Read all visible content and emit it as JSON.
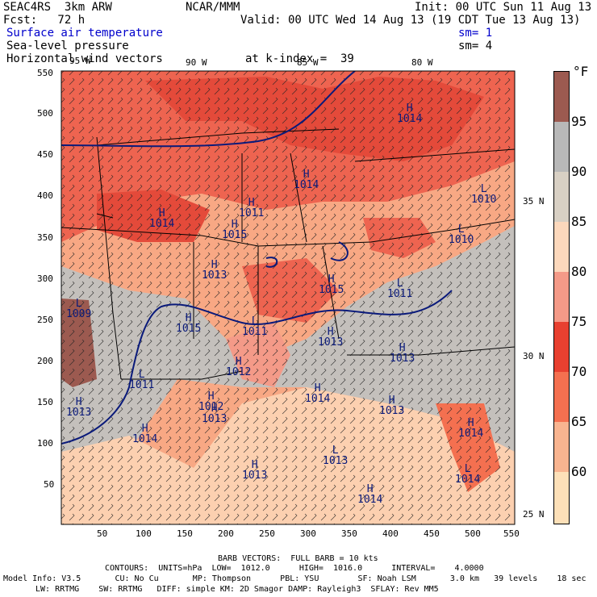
{
  "header": {
    "model": "SEAC4RS  3km ARW",
    "center": "NCAR/MMM",
    "init": "Init: 00 UTC Sun 11 Aug 13",
    "fcst": "Fcst:   72 h",
    "valid": "Valid: 00 UTC Wed 14 Aug 13 (19 CDT Tue 13 Aug 13)",
    "field1": "Surface air temperature",
    "field1_sm": "sm= 1",
    "field2": "Sea-level pressure",
    "field2_sm": "sm= 4",
    "field3": "Horizontal wind vectors",
    "field3_level": "at k-index =  39"
  },
  "map": {
    "lon_labels": [
      "95 W",
      "90 W",
      "85 W",
      "80 W"
    ],
    "lat_labels": [
      "35 N",
      "30 N",
      "25 N"
    ],
    "x_ticks": [
      "50",
      "100",
      "150",
      "200",
      "250",
      "300",
      "350",
      "400",
      "450",
      "500",
      "550"
    ],
    "y_ticks": [
      "550",
      "500",
      "450",
      "400",
      "350",
      "300",
      "250",
      "200",
      "150",
      "100",
      "50"
    ],
    "pressure_labels": [
      {
        "type": "H",
        "value": "1014"
      },
      {
        "type": "L",
        "value": "1010"
      },
      {
        "type": "L",
        "value": "1010"
      },
      {
        "type": "H",
        "value": "1014"
      },
      {
        "type": "H",
        "value": "1015"
      },
      {
        "type": "H",
        "value": "1015"
      },
      {
        "type": "H",
        "value": "1014"
      },
      {
        "type": "H",
        "value": "1013"
      },
      {
        "type": "H",
        "value": "1012"
      },
      {
        "type": "L",
        "value": "1011"
      },
      {
        "type": "L",
        "value": "1011"
      },
      {
        "type": "H",
        "value": "1015"
      },
      {
        "type": "H",
        "value": "1013"
      },
      {
        "type": "L",
        "value": "1011"
      },
      {
        "type": "H",
        "value": "1013"
      },
      {
        "type": "L",
        "value": "1009"
      },
      {
        "type": "H",
        "value": "1013"
      },
      {
        "type": "H",
        "value": "1014"
      },
      {
        "type": "H",
        "value": "1013"
      },
      {
        "type": "L",
        "value": "1013"
      },
      {
        "type": "H",
        "value": "1014"
      },
      {
        "type": "H",
        "value": "1014"
      },
      {
        "type": "H",
        "value": "1014"
      },
      {
        "type": "L",
        "value": "1014"
      },
      {
        "type": "H",
        "value": "1013"
      },
      {
        "type": "H",
        "value": "1013"
      },
      {
        "type": "H",
        "value": "1012"
      },
      {
        "type": "H",
        "value": "1011"
      }
    ]
  },
  "legend": {
    "unit": "°F",
    "labels": [
      "95",
      "90",
      "85",
      "80",
      "75",
      "70",
      "65",
      "60"
    ],
    "colors": [
      "#9c5a50",
      "#b8b8b8",
      "#d8d0c4",
      "#fcd8bc",
      "#f49a88",
      "#e84030",
      "#f47050",
      "#f8b490",
      "#fde0b8"
    ]
  },
  "footer": {
    "line1": "BARB VECTORS:  FULL BARB = 10 kts",
    "line2": "CONTOURS:  UNITS=hPa  LOW=  1012.0      HIGH=  1016.0      INTERVAL=    4.0000",
    "line3": "Model Info: V3.5       CU: No Cu       MP: Thompson      PBL: YSU        SF: Noah LSM       3.0 km   39 levels    18 sec",
    "line4": "LW: RRTMG    SW: RRTMG   DIFF: simple KM: 2D Smagor DAMP: Rayleigh3  SFLAY: Rev MM5"
  }
}
